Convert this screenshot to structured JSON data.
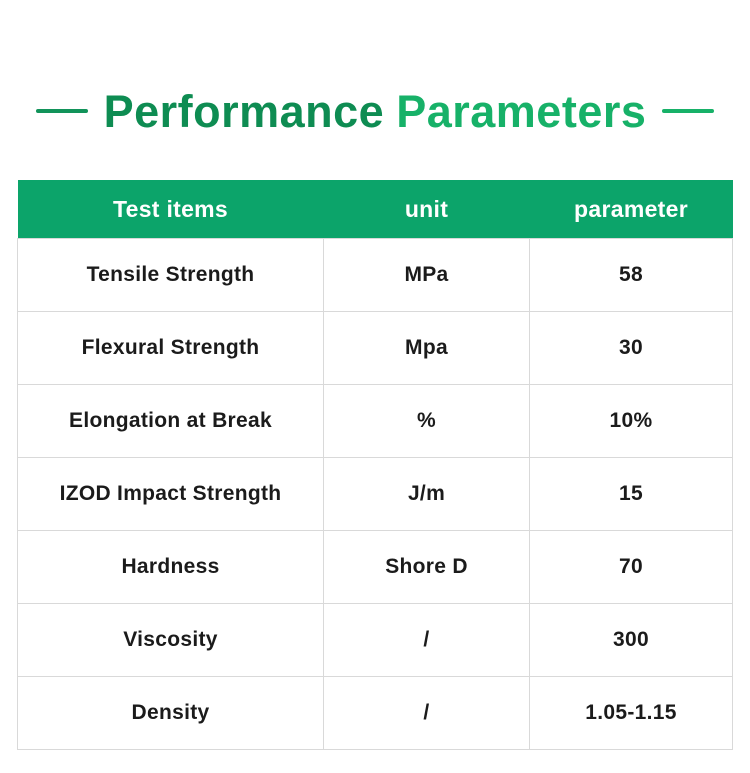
{
  "title": {
    "part1": "Performance",
    "part2": "Parameters",
    "colors": {
      "part1": "#0E8C52",
      "part2": "#17B168",
      "dash_left": "#12935A",
      "dash_right": "#17B168"
    }
  },
  "table": {
    "headers": [
      "Test items",
      "unit",
      "parameter"
    ],
    "rows": [
      {
        "item": "Tensile Strength",
        "unit": "MPa",
        "parameter": "58"
      },
      {
        "item": "Flexural Strength",
        "unit": "Mpa",
        "parameter": "30"
      },
      {
        "item": "Elongation at Break",
        "unit": "%",
        "parameter": "10%"
      },
      {
        "item": "IZOD Impact Strength",
        "unit": "J/m",
        "parameter": "15"
      },
      {
        "item": "Hardness",
        "unit": "Shore D",
        "parameter": "70"
      },
      {
        "item": "Viscosity",
        "unit": "/",
        "parameter": "300"
      },
      {
        "item": "Density",
        "unit": "/",
        "parameter": "1.05-1.15"
      }
    ],
    "colors": {
      "header_bg": "#0CA46A",
      "header_text": "#FFFFFF",
      "cell_text": "#1B1B1B",
      "border": "#D9D9D9"
    }
  },
  "chart_data": {
    "type": "table",
    "title": "Performance Parameters",
    "columns": [
      "Test items",
      "unit",
      "parameter"
    ],
    "rows": [
      [
        "Tensile Strength",
        "MPa",
        "58"
      ],
      [
        "Flexural Strength",
        "Mpa",
        "30"
      ],
      [
        "Elongation at Break",
        "%",
        "10%"
      ],
      [
        "IZOD Impact Strength",
        "J/m",
        "15"
      ],
      [
        "Hardness",
        "Shore D",
        "70"
      ],
      [
        "Viscosity",
        "/",
        "300"
      ],
      [
        "Density",
        "/",
        "1.05-1.15"
      ]
    ]
  }
}
